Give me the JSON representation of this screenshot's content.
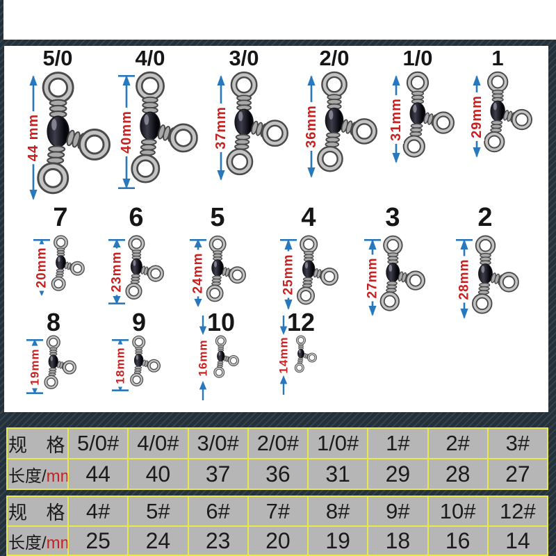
{
  "rows": [
    {
      "items": [
        {
          "label": "5/0",
          "dim": "44 mm",
          "mm": 44
        },
        {
          "label": "4/0",
          "dim": "40mm",
          "mm": 40
        },
        {
          "label": "3/0",
          "dim": "37mm",
          "mm": 37
        },
        {
          "label": "2/0",
          "dim": "36mm",
          "mm": 36
        },
        {
          "label": "1/0",
          "dim": "31mm",
          "mm": 31
        },
        {
          "label": "1",
          "dim": "29mm",
          "mm": 29
        }
      ]
    },
    {
      "items": [
        {
          "label": "7",
          "dim": "20mm",
          "mm": 20
        },
        {
          "label": "6",
          "dim": "23mm",
          "mm": 23
        },
        {
          "label": "5",
          "dim": "24mm",
          "mm": 24
        },
        {
          "label": "4",
          "dim": "25mm",
          "mm": 25
        },
        {
          "label": "3",
          "dim": "27mm",
          "mm": 27
        },
        {
          "label": "2",
          "dim": "28mm",
          "mm": 28
        }
      ]
    },
    {
      "items": [
        {
          "label": "8",
          "dim": "19mm",
          "mm": 19
        },
        {
          "label": "9",
          "dim": "18mm",
          "mm": 18
        },
        {
          "label": "10",
          "dim": "16mm",
          "mm": 16
        },
        {
          "label": "12",
          "dim": "14mm",
          "mm": 14
        }
      ]
    }
  ],
  "tables": [
    {
      "spec_label": "规 格",
      "length_label": "长度/",
      "length_unit": "mm",
      "columns": [
        "5/0#",
        "4/0#",
        "3/0#",
        "2/0#",
        "1/0#",
        "1#",
        "2#",
        "3#"
      ],
      "values": [
        "44",
        "40",
        "37",
        "36",
        "31",
        "29",
        "28",
        "27"
      ]
    },
    {
      "spec_label": "规 格",
      "length_label": "长度/",
      "length_unit": "mm",
      "columns": [
        "4#",
        "5#",
        "6#",
        "7#",
        "8#",
        "9#",
        "10#",
        "12#"
      ],
      "values": [
        "25",
        "24",
        "23",
        "20",
        "19",
        "18",
        "16",
        "14"
      ]
    }
  ],
  "colors": {
    "arrow_blue": "#2878be",
    "dim_red": "#cb2020",
    "table_border_yellow": "#e9e94a",
    "table_cell_gray": "#b6b6b6",
    "background_dark": "#25313a"
  }
}
